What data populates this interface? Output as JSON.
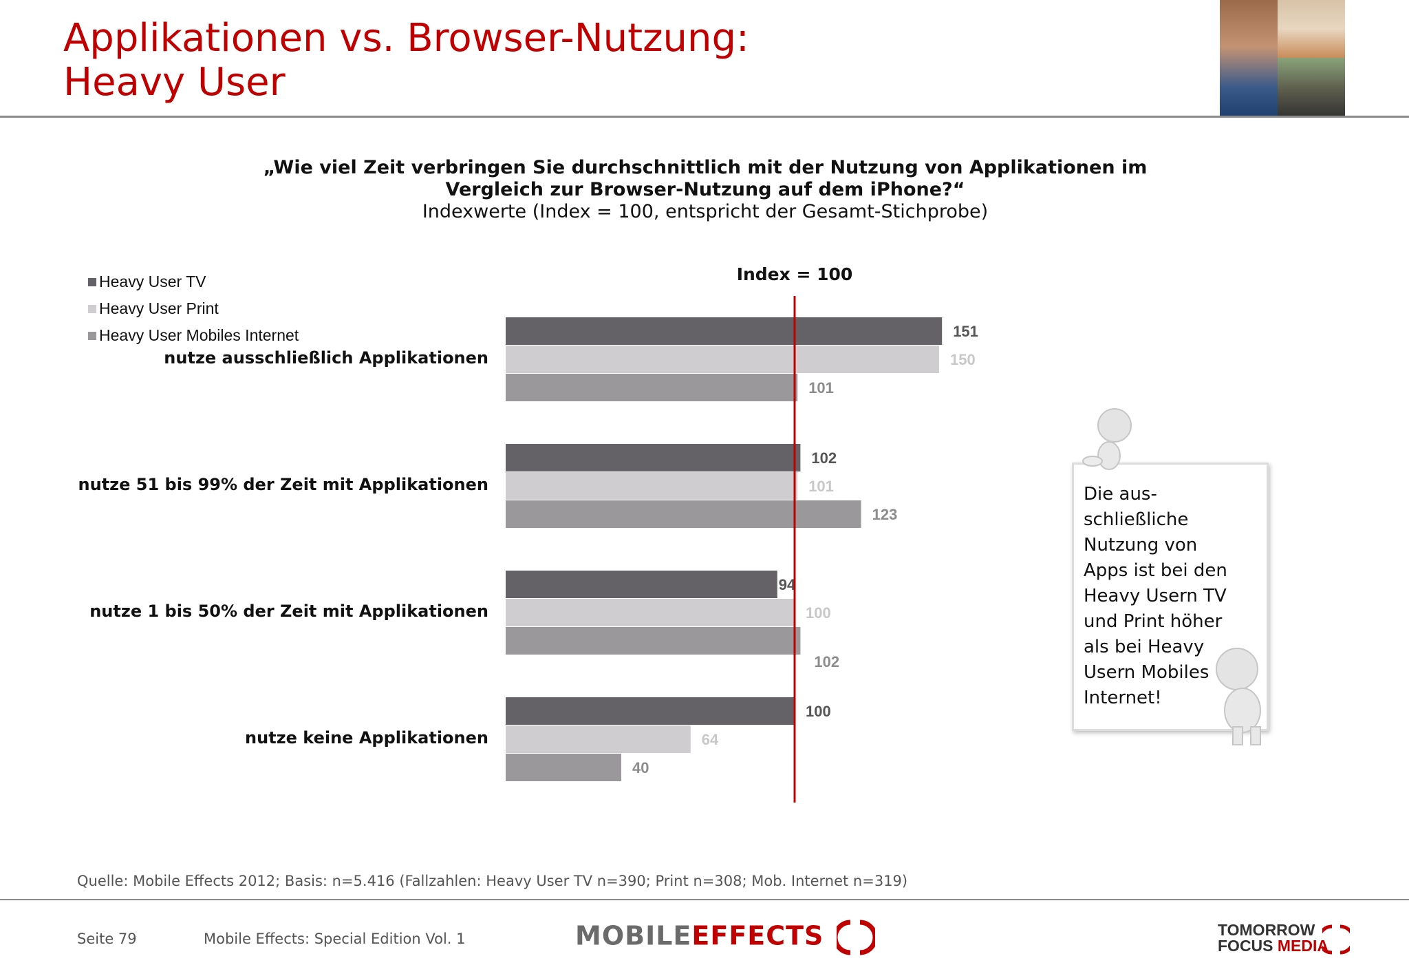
{
  "header": {
    "title_line1": "Applikationen vs. Browser-Nutzung:",
    "title_line2": "Heavy User"
  },
  "question": {
    "line1": "„Wie viel Zeit verbringen Sie durchschnittlich mit der Nutzung von Applikationen im",
    "line2": "Vergleich zur Browser-Nutzung auf dem iPhone?“",
    "subtitle": "Indexwerte (Index = 100, entspricht der Gesamt-Stichprobe)"
  },
  "chart_data": {
    "type": "bar",
    "orientation": "horizontal",
    "categories": [
      "nutze ausschließlich Applikationen",
      "nutze 51 bis 99% der Zeit mit Applikationen",
      "nutze 1 bis 50% der Zeit mit Applikationen",
      "nutze keine Applikationen"
    ],
    "series": [
      {
        "name": "Heavy User TV",
        "color": "#646266",
        "label_color": "#555555",
        "values": [
          151,
          102,
          94,
          100
        ]
      },
      {
        "name": "Heavy User Print",
        "color": "#cfcdd0",
        "label_color": "#c8c8c8",
        "values": [
          150,
          101,
          100,
          64
        ]
      },
      {
        "name": "Heavy User Mobiles Internet",
        "color": "#9a989b",
        "label_color": "#8c8c8c",
        "values": [
          101,
          123,
          102,
          40
        ]
      }
    ],
    "reference_line": {
      "value": 100,
      "label": "Index = 100",
      "color": "#c00000"
    },
    "xlim": [
      0,
      160
    ],
    "legend_position": "top-left",
    "grid": false
  },
  "callout": {
    "lines": [
      "Die aus-",
      "schließliche",
      "Nutzung von",
      "Apps ist bei den",
      "Heavy Usern TV",
      "und Print höher",
      "als bei Heavy",
      "Usern Mobiles",
      "Internet!"
    ]
  },
  "source": "Quelle: Mobile Effects 2012; Basis: n=5.416 (Fallzahlen: Heavy User TV n=390; Print n=308; Mob. Internet n=319)",
  "footer": {
    "page": "Seite 79",
    "edition": "Mobile Effects: Special Edition Vol. 1",
    "logo_mobile": "MOBILE",
    "logo_effects": "EFFECTS",
    "logo_tomorrow": "TOMORROW",
    "logo_focus": "FOCUS",
    "logo_media": "MEDIA"
  }
}
